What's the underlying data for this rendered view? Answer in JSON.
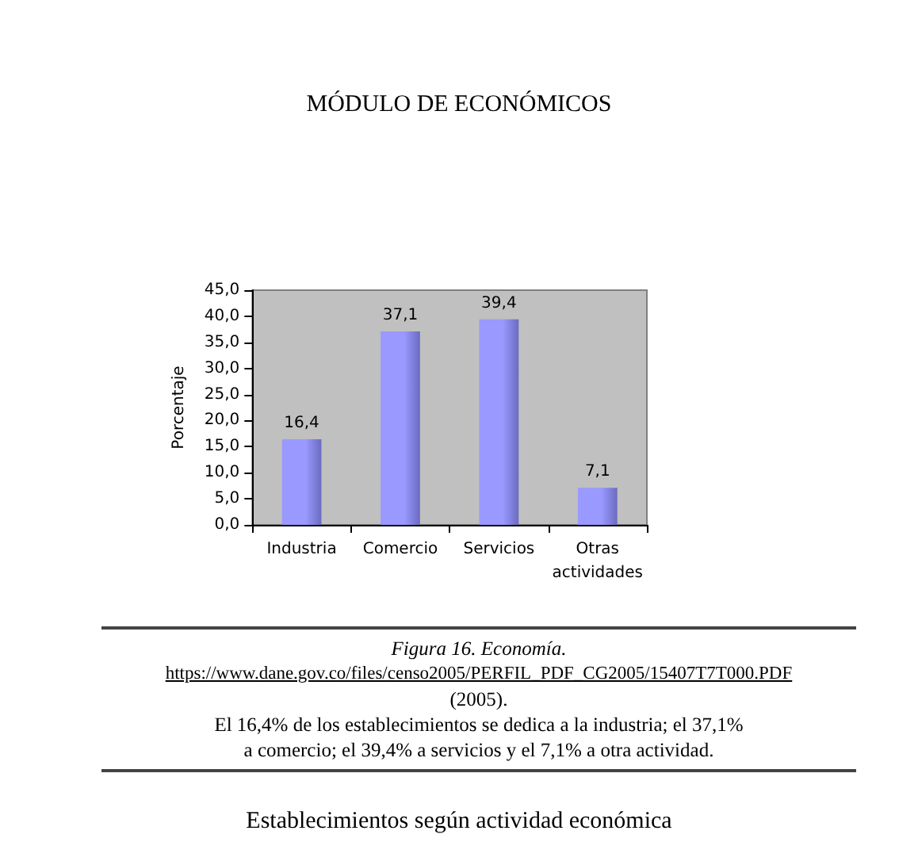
{
  "chart_data": {
    "type": "bar",
    "title": "MÓDULO DE ECONÓMICOS",
    "ylabel": "Porcentaje",
    "categories": [
      "Industria",
      "Comercio",
      "Servicios",
      "Otras actividades"
    ],
    "values": [
      16.4,
      37.1,
      39.4,
      7.1
    ],
    "color": "#9999ff",
    "value_labels": [
      "16,4",
      "37,1",
      "39,4",
      "7,1"
    ],
    "ylim": [
      0,
      45
    ],
    "yticks": [
      {
        "value": 0,
        "label": "0,0"
      },
      {
        "value": 5,
        "label": "5,0"
      },
      {
        "value": 10,
        "label": "10,0"
      },
      {
        "value": 15,
        "label": "15,0"
      },
      {
        "value": 20,
        "label": "20,0"
      },
      {
        "value": 25,
        "label": "25,0"
      },
      {
        "value": 30,
        "label": "30,0"
      },
      {
        "value": 35,
        "label": "35,0"
      },
      {
        "value": 40,
        "label": "40,0"
      },
      {
        "value": 45,
        "label": "45,0"
      }
    ],
    "grid": false,
    "annotations": [
      "Figura 16. Economía.",
      "https://www.dane.gov.co/files/censo2005/PERFIL_PDF_CG2005/15407T7T000.PDF",
      "(2005).",
      "El 16,4% de los establecimientos se dedica a la industria; el 37,1% a comercio; el 39,4% a servicios y el 7,1% a otra actividad.",
      "Establecimientos según actividad económica"
    ]
  }
}
